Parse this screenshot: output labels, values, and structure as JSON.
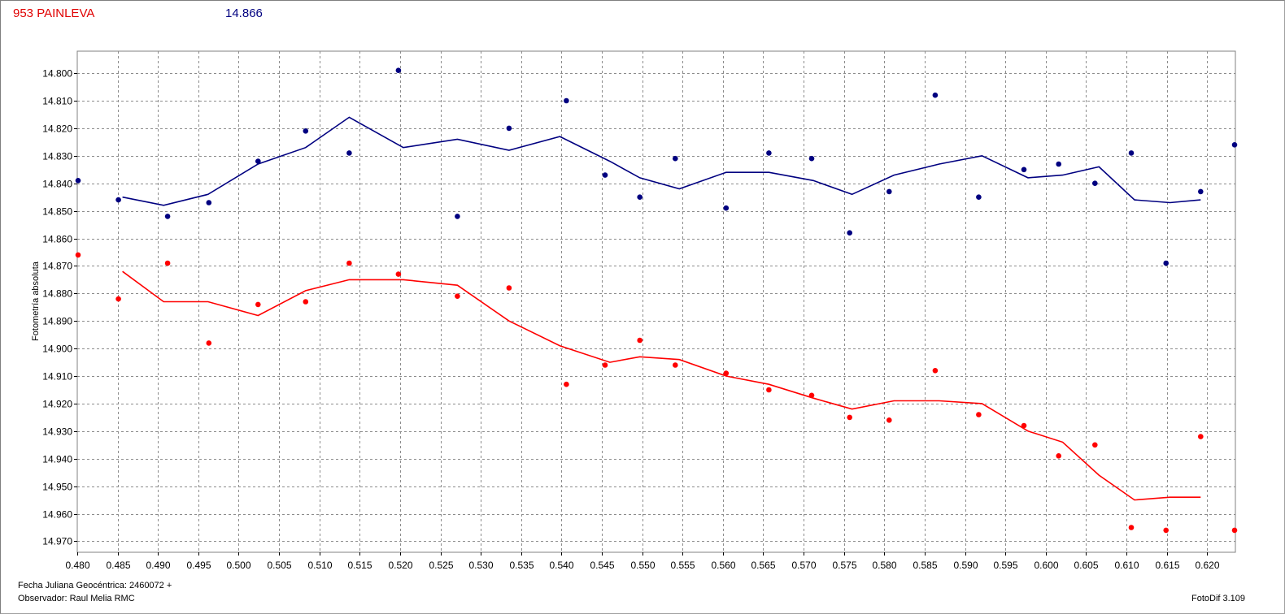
{
  "header": {
    "object": "953 PAINLEVA",
    "mean_mag": "14.866"
  },
  "footer": {
    "julian_date": "Fecha Juliana Geocéntrica: 2460072 +",
    "observer": "Observador: Raul Melia RMC",
    "software": "FotoDif 3.109"
  },
  "chart_data": {
    "type": "scatter",
    "title": "",
    "xlabel": "",
    "ylabel": "Fotometría absoluta",
    "xlim": [
      0.48,
      0.6235
    ],
    "ylim": [
      14.974,
      14.792
    ],
    "y_inverted": true,
    "grid": true,
    "x_ticks": [
      "0.480",
      "0.485",
      "0.490",
      "0.495",
      "0.500",
      "0.505",
      "0.510",
      "0.515",
      "0.520",
      "0.525",
      "0.530",
      "0.535",
      "0.540",
      "0.545",
      "0.550",
      "0.555",
      "0.560",
      "0.565",
      "0.570",
      "0.575",
      "0.580",
      "0.585",
      "0.590",
      "0.595",
      "0.600",
      "0.605",
      "0.610",
      "0.615",
      "0.620"
    ],
    "y_ticks": [
      "14.800",
      "14.810",
      "14.820",
      "14.830",
      "14.840",
      "14.850",
      "14.860",
      "14.870",
      "14.880",
      "14.890",
      "14.900",
      "14.910",
      "14.920",
      "14.930",
      "14.940",
      "14.950",
      "14.960",
      "14.970"
    ],
    "series": [
      {
        "color": "#000080",
        "points": {
          "x": [
            0.4801,
            0.4851,
            0.4912,
            0.4963,
            0.5024,
            0.5083,
            0.5137,
            0.5198,
            0.5271,
            0.5335,
            0.5406,
            0.5454,
            0.5497,
            0.5541,
            0.5604,
            0.5657,
            0.571,
            0.5757,
            0.5806,
            0.5863,
            0.5917,
            0.5973,
            0.6016,
            0.6061,
            0.6106,
            0.6149,
            0.6192,
            0.6234
          ],
          "y": [
            14.839,
            14.846,
            14.852,
            14.847,
            14.832,
            14.821,
            14.829,
            14.799,
            14.852,
            14.82,
            14.81,
            14.837,
            14.845,
            14.831,
            14.849,
            14.829,
            14.831,
            14.858,
            14.843,
            14.808,
            14.845,
            14.835,
            14.833,
            14.84,
            14.829,
            14.869,
            14.843,
            14.826
          ]
        },
        "line": {
          "x": [
            0.4856,
            0.4907,
            0.4962,
            0.5024,
            0.5083,
            0.5137,
            0.5204,
            0.5271,
            0.5335,
            0.5398,
            0.546,
            0.5497,
            0.5546,
            0.5604,
            0.5657,
            0.5712,
            0.576,
            0.5812,
            0.5868,
            0.5921,
            0.5978,
            0.6021,
            0.6066,
            0.611,
            0.6154,
            0.6192
          ],
          "y": [
            14.845,
            14.848,
            14.844,
            14.833,
            14.827,
            14.816,
            14.827,
            14.824,
            14.828,
            14.823,
            14.832,
            14.838,
            14.842,
            14.836,
            14.836,
            14.839,
            14.844,
            14.837,
            14.833,
            14.83,
            14.838,
            14.837,
            14.834,
            14.846,
            14.847,
            14.846
          ]
        }
      },
      {
        "color": "#ff0000",
        "points": {
          "x": [
            0.4801,
            0.4851,
            0.4912,
            0.4963,
            0.5024,
            0.5083,
            0.5137,
            0.5198,
            0.5271,
            0.5335,
            0.5406,
            0.5454,
            0.5497,
            0.5541,
            0.5604,
            0.5657,
            0.571,
            0.5757,
            0.5806,
            0.5863,
            0.5917,
            0.5973,
            0.6016,
            0.6061,
            0.6106,
            0.6149,
            0.6192,
            0.6234
          ],
          "y": [
            14.866,
            14.882,
            14.869,
            14.898,
            14.884,
            14.883,
            14.869,
            14.873,
            14.881,
            14.878,
            14.913,
            14.906,
            14.897,
            14.906,
            14.909,
            14.915,
            14.917,
            14.925,
            14.926,
            14.908,
            14.924,
            14.928,
            14.939,
            14.935,
            14.965,
            14.966,
            14.932,
            14.966
          ]
        },
        "line": {
          "x": [
            0.4856,
            0.4907,
            0.4962,
            0.5024,
            0.5083,
            0.5137,
            0.5204,
            0.5271,
            0.5335,
            0.5398,
            0.546,
            0.5497,
            0.5546,
            0.5604,
            0.5657,
            0.5712,
            0.576,
            0.5812,
            0.5868,
            0.5921,
            0.5978,
            0.6021,
            0.6066,
            0.611,
            0.6154,
            0.6192
          ],
          "y": [
            14.872,
            14.883,
            14.883,
            14.888,
            14.879,
            14.875,
            14.875,
            14.877,
            14.89,
            14.899,
            14.905,
            14.903,
            14.904,
            14.91,
            14.913,
            14.918,
            14.922,
            14.919,
            14.919,
            14.92,
            14.93,
            14.934,
            14.946,
            14.955,
            14.954,
            14.954
          ]
        }
      }
    ]
  }
}
